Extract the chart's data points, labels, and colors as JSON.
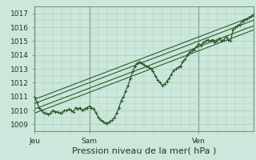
{
  "xlabel": "Pression niveau de la mer( hPa )",
  "background_color": "#cce8dd",
  "plot_bg_color": "#cce8dd",
  "grid_color": "#aaccaa",
  "line_color": "#2d5a2d",
  "ylim": [
    1008.5,
    1017.5
  ],
  "xlim": [
    0,
    96
  ],
  "yticks": [
    1009,
    1010,
    1011,
    1012,
    1013,
    1014,
    1015,
    1016,
    1017
  ],
  "xtick_positions": [
    0,
    24,
    72
  ],
  "xtick_labels": [
    "Jeu",
    "Sam",
    "Ven"
  ],
  "vline_positions": [
    0,
    24,
    72
  ],
  "main_line_x": [
    0,
    1,
    2,
    3,
    4,
    5,
    6,
    7,
    8,
    9,
    10,
    11,
    12,
    13,
    14,
    15,
    16,
    17,
    18,
    19,
    20,
    21,
    22,
    23,
    24,
    25,
    26,
    27,
    28,
    29,
    30,
    31,
    32,
    33,
    34,
    35,
    36,
    37,
    38,
    39,
    40,
    41,
    42,
    43,
    44,
    45,
    46,
    47,
    48,
    49,
    50,
    51,
    52,
    53,
    54,
    55,
    56,
    57,
    58,
    59,
    60,
    61,
    62,
    63,
    64,
    65,
    66,
    67,
    68,
    69,
    70,
    71,
    72,
    73,
    74,
    75,
    76,
    77,
    78,
    79,
    80,
    81,
    82,
    83,
    84,
    85,
    86,
    87,
    88,
    89,
    90,
    91,
    92,
    93,
    94,
    95,
    96
  ],
  "main_line_y": [
    1011.0,
    1010.6,
    1010.2,
    1010.0,
    1009.8,
    1009.8,
    1009.7,
    1009.8,
    1010.0,
    1009.9,
    1009.9,
    1009.8,
    1009.8,
    1010.0,
    1010.0,
    1010.1,
    1010.0,
    1009.9,
    1010.2,
    1010.1,
    1010.2,
    1010.0,
    1010.1,
    1010.2,
    1010.3,
    1010.2,
    1010.1,
    1009.8,
    1009.5,
    1009.3,
    1009.2,
    1009.1,
    1009.1,
    1009.2,
    1009.3,
    1009.5,
    1009.8,
    1010.2,
    1010.7,
    1011.0,
    1011.4,
    1011.8,
    1012.3,
    1012.8,
    1013.2,
    1013.4,
    1013.5,
    1013.4,
    1013.3,
    1013.2,
    1013.1,
    1013.0,
    1012.8,
    1012.5,
    1012.2,
    1012.0,
    1011.8,
    1011.9,
    1012.1,
    1012.3,
    1012.6,
    1012.9,
    1013.0,
    1013.1,
    1013.2,
    1013.5,
    1013.7,
    1014.0,
    1014.2,
    1014.3,
    1014.4,
    1014.6,
    1014.8,
    1014.7,
    1014.9,
    1015.0,
    1015.1,
    1015.0,
    1015.1,
    1014.9,
    1015.0,
    1015.2,
    1015.0,
    1015.1,
    1015.3,
    1015.1,
    1015.0,
    1015.8,
    1016.0,
    1016.1,
    1016.2,
    1016.4,
    1016.5,
    1016.6,
    1016.7,
    1016.8,
    1016.9
  ],
  "trend_lines": [
    {
      "x": [
        0,
        96
      ],
      "y": [
        1010.8,
        1016.8
      ]
    },
    {
      "x": [
        0,
        96
      ],
      "y": [
        1010.5,
        1016.5
      ]
    },
    {
      "x": [
        0,
        96
      ],
      "y": [
        1010.1,
        1016.1
      ]
    },
    {
      "x": [
        0,
        96
      ],
      "y": [
        1009.8,
        1015.8
      ]
    }
  ],
  "tick_fontsize": 6.5,
  "xlabel_fontsize": 8
}
